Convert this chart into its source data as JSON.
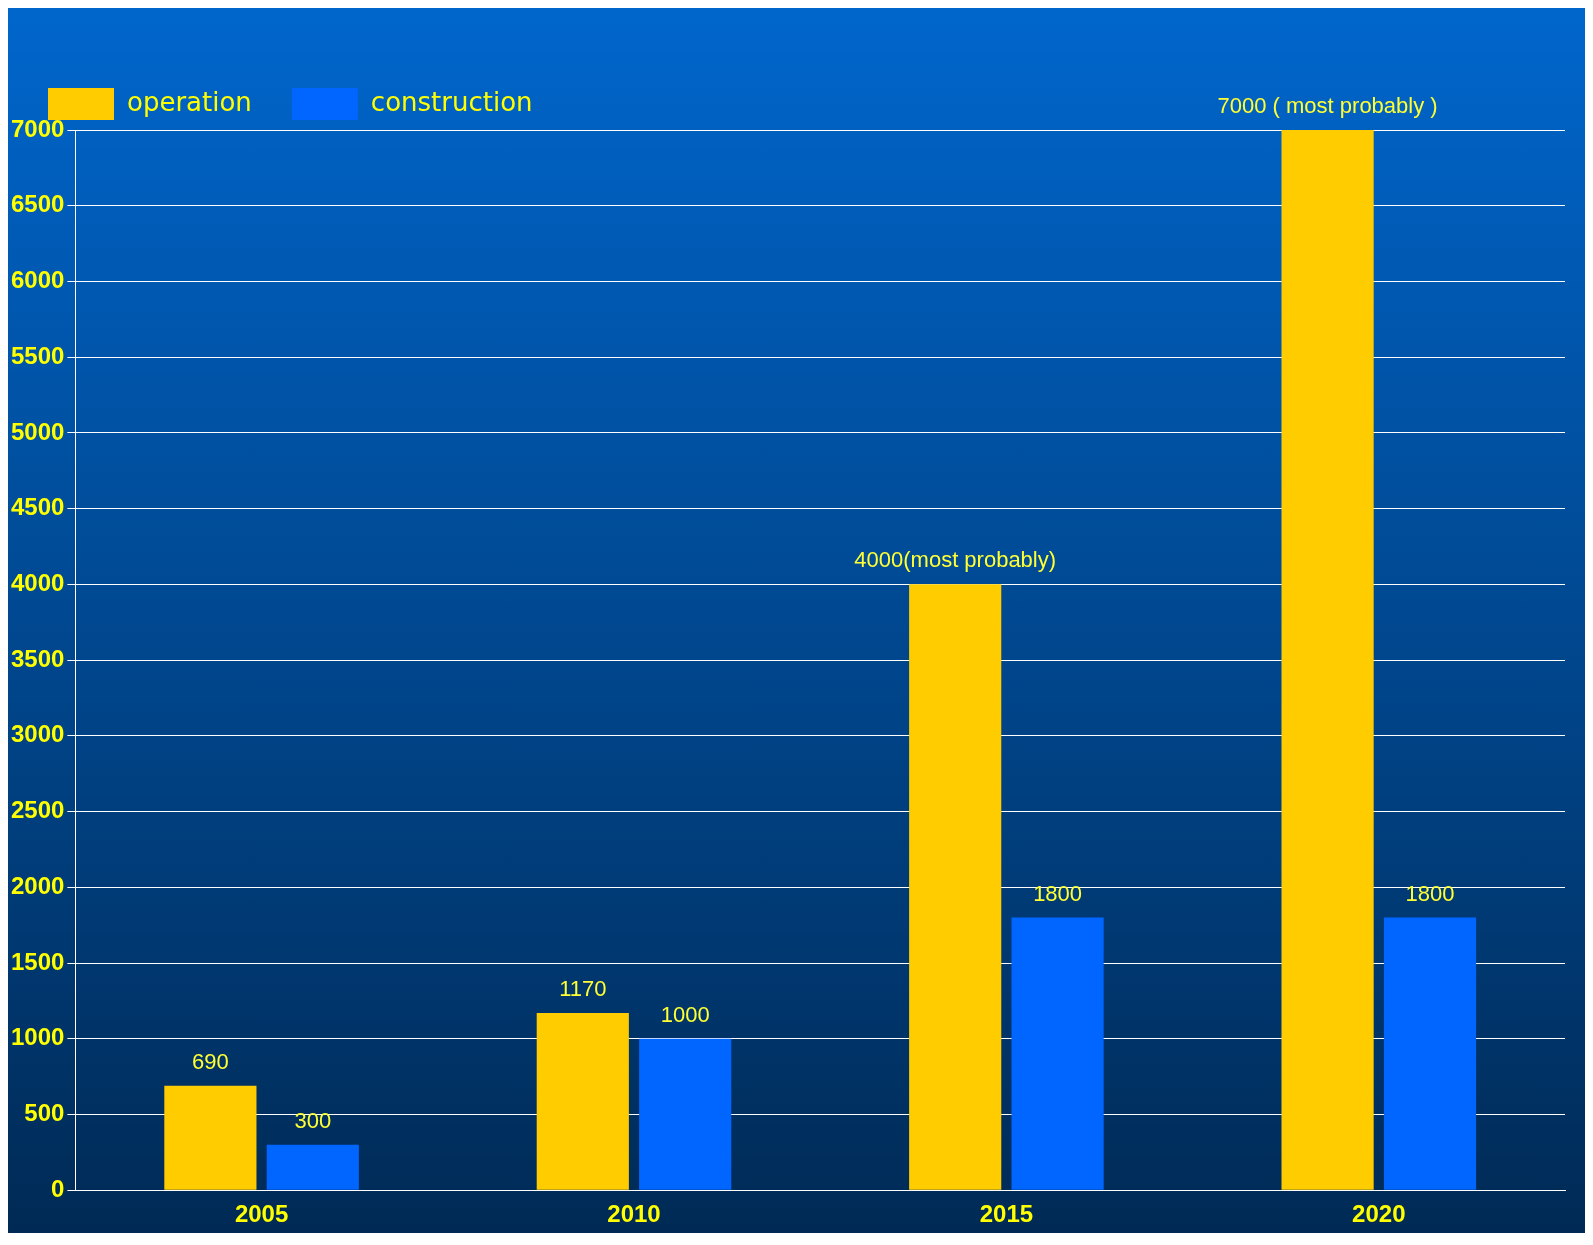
{
  "chart_data": {
    "type": "bar",
    "categories": [
      "2005",
      "2010",
      "2015",
      "2020"
    ],
    "series": [
      {
        "name": "operation",
        "color": "#ffcc00",
        "values": [
          690,
          1170,
          4000,
          7000
        ],
        "value_labels": [
          "690",
          "1170",
          "4000(most probably)",
          "7000 ( most probably )"
        ]
      },
      {
        "name": "construction",
        "color": "#0066ff",
        "values": [
          300,
          1000,
          1800,
          1800
        ],
        "value_labels": [
          "300",
          "1000",
          "1800",
          "1800"
        ]
      }
    ],
    "ylim": [
      0,
      7000
    ],
    "yticks": [
      0,
      500,
      1000,
      1500,
      2000,
      2500,
      3000,
      3500,
      4000,
      4500,
      5000,
      5500,
      6000,
      6500,
      7000
    ],
    "grid": "y",
    "legend": "top left"
  }
}
